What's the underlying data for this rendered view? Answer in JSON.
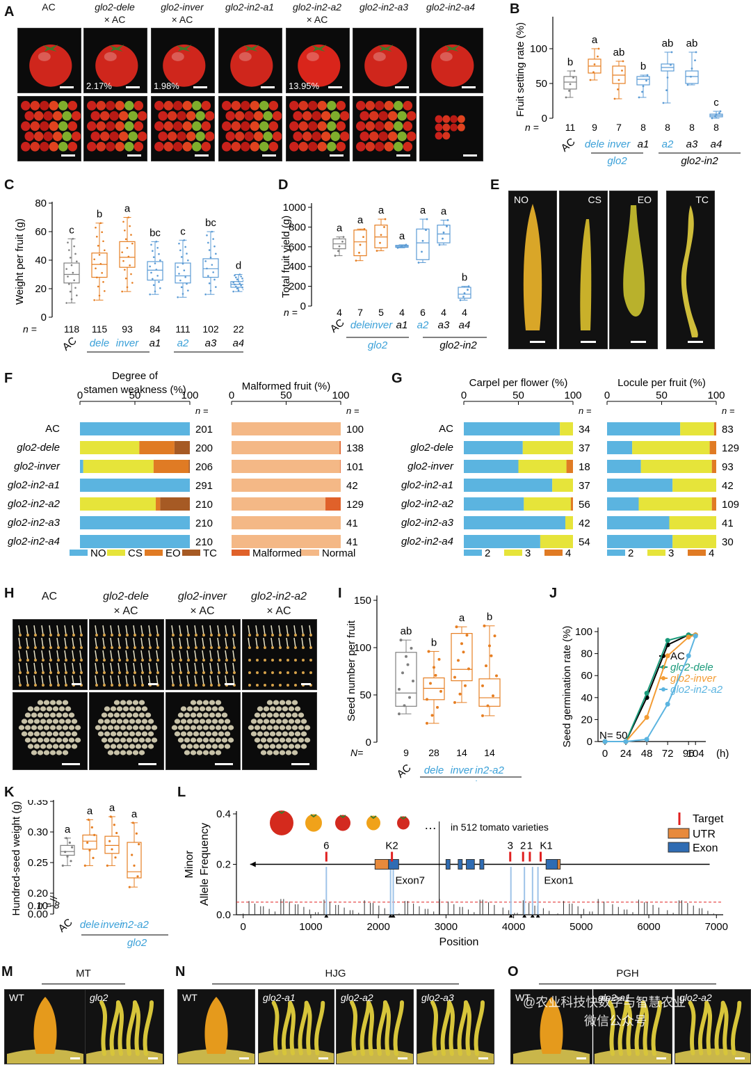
{
  "panelA": {
    "letter": "A",
    "columns": [
      {
        "label1": "AC",
        "label2": "",
        "pct": ""
      },
      {
        "label1": "glo2-dele",
        "label2": "× AC",
        "pct": "2.17%"
      },
      {
        "label1": "glo2-inver",
        "label2": "× AC",
        "pct": "1.98%"
      },
      {
        "label1": "glo2-in2-a1",
        "label2": "",
        "pct": ""
      },
      {
        "label1": "glo2-in2-a2",
        "label2": "× AC",
        "pct": "13.95%"
      },
      {
        "label1": "glo2-in2-a3",
        "label2": "",
        "pct": ""
      },
      {
        "label1": "glo2-in2-a4",
        "label2": "",
        "pct": ""
      }
    ]
  },
  "panelB": {
    "letter": "B",
    "chart_data": {
      "type": "box",
      "ylabel": "Fruit setting rate (%)",
      "yticks": [
        "0",
        "50",
        "100"
      ],
      "ylim": [
        0,
        130
      ],
      "n_label": "n =",
      "groups": [
        {
          "x": "AC",
          "n": "11",
          "sig": "b",
          "color": "#7f7f7f",
          "q1": 42,
          "med": 52,
          "q3": 60,
          "min": 30,
          "max": 68
        },
        {
          "x": "dele",
          "n": "9",
          "sig": "a",
          "color": "#e67e22",
          "q1": 65,
          "med": 75,
          "q3": 85,
          "min": 55,
          "max": 100
        },
        {
          "x": "inver",
          "n": "7",
          "sig": "ab",
          "color": "#e67e22",
          "q1": 50,
          "med": 62,
          "q3": 75,
          "min": 28,
          "max": 82
        },
        {
          "x": "a1",
          "n": "8",
          "sig": "b",
          "color": "#5b9bd5",
          "q1": 48,
          "med": 56,
          "q3": 60,
          "min": 30,
          "max": 62
        },
        {
          "x": "a2",
          "n": "8",
          "sig": "ab",
          "color": "#5b9bd5",
          "q1": 68,
          "med": 73,
          "q3": 78,
          "min": 22,
          "max": 95
        },
        {
          "x": "a3",
          "n": "8",
          "sig": "ab",
          "color": "#5b9bd5",
          "q1": 50,
          "med": 60,
          "q3": 68,
          "min": 48,
          "max": 95
        },
        {
          "x": "a4",
          "n": "8",
          "sig": "c",
          "color": "#5b9bd5",
          "q1": 2,
          "med": 4,
          "q3": 6,
          "min": 0,
          "max": 10
        }
      ],
      "group_labels": [
        "glo2",
        "glo2-in2"
      ]
    }
  },
  "panelC": {
    "letter": "C",
    "chart_data": {
      "type": "box",
      "ylabel": "Weight per fruit (g)",
      "yticks": [
        "0",
        "20",
        "40",
        "60",
        "80"
      ],
      "ylim": [
        0,
        80
      ],
      "n_label": "n =",
      "groups": [
        {
          "x": "AC",
          "n": "118",
          "sig": "c",
          "color": "#7f7f7f",
          "q1": 24,
          "med": 30,
          "q3": 38,
          "min": 10,
          "max": 55
        },
        {
          "x": "dele",
          "n": "115",
          "sig": "b",
          "color": "#e67e22",
          "q1": 28,
          "med": 37,
          "q3": 45,
          "min": 12,
          "max": 66
        },
        {
          "x": "inver",
          "n": "93",
          "sig": "a",
          "color": "#e67e22",
          "q1": 35,
          "med": 42,
          "q3": 53,
          "min": 18,
          "max": 70
        },
        {
          "x": "a1",
          "n": "84",
          "sig": "bc",
          "color": "#5b9bd5",
          "q1": 26,
          "med": 33,
          "q3": 39,
          "min": 16,
          "max": 53
        },
        {
          "x": "a2",
          "n": "111",
          "sig": "c",
          "color": "#5b9bd5",
          "q1": 24,
          "med": 29,
          "q3": 38,
          "min": 14,
          "max": 54
        },
        {
          "x": "a3",
          "n": "102",
          "sig": "bc",
          "color": "#5b9bd5",
          "q1": 28,
          "med": 34,
          "q3": 41,
          "min": 16,
          "max": 60
        },
        {
          "x": "a4",
          "n": "22",
          "sig": "d",
          "color": "#5b9bd5",
          "q1": 21,
          "med": 23,
          "q3": 25,
          "min": 18,
          "max": 30
        }
      ],
      "group_labels": [
        "glo2",
        "glo2-in2"
      ]
    }
  },
  "panelD": {
    "letter": "D",
    "chart_data": {
      "type": "box",
      "ylabel": "Total fruit yield (g)",
      "yticks": [
        "0",
        "200",
        "400",
        "600",
        "800",
        "1000"
      ],
      "ylim": [
        0,
        1000
      ],
      "n_label": "n =",
      "groups": [
        {
          "x": "AC",
          "n": "4",
          "sig": "a",
          "color": "#7f7f7f",
          "q1": 580,
          "med": 630,
          "q3": 680,
          "min": 510,
          "max": 700
        },
        {
          "x": "dele",
          "n": "7",
          "sig": "a",
          "color": "#e67e22",
          "q1": 510,
          "med": 650,
          "q3": 770,
          "min": 460,
          "max": 780
        },
        {
          "x": "inver",
          "n": "5",
          "sig": "a",
          "color": "#e67e22",
          "q1": 590,
          "med": 700,
          "q3": 820,
          "min": 560,
          "max": 880
        },
        {
          "x": "a1",
          "n": "4",
          "sig": "a",
          "color": "#5b9bd5",
          "q1": 595,
          "med": 605,
          "q3": 615,
          "min": 590,
          "max": 620
        },
        {
          "x": "a2",
          "n": "6",
          "sig": "a",
          "color": "#5b9bd5",
          "q1": 470,
          "med": 640,
          "q3": 780,
          "min": 440,
          "max": 880
        },
        {
          "x": "a3",
          "n": "4",
          "sig": "a",
          "color": "#5b9bd5",
          "q1": 640,
          "med": 730,
          "q3": 820,
          "min": 620,
          "max": 870
        },
        {
          "x": "a4",
          "n": "4",
          "sig": "b",
          "color": "#5b9bd5",
          "q1": 80,
          "med": 120,
          "q3": 190,
          "min": 60,
          "max": 200
        }
      ],
      "group_labels": [
        "glo2",
        "glo2-in2"
      ]
    }
  },
  "panelE": {
    "letter": "E",
    "labels": [
      "NO",
      "CS",
      "EO",
      "TC"
    ]
  },
  "panelF": {
    "letter": "F",
    "rows": [
      "AC",
      "glo2-dele",
      "glo2-inver",
      "glo2-in2-a1",
      "glo2-in2-a2",
      "glo2-in2-a3",
      "glo2-in2-a4"
    ],
    "n_header": "n =",
    "chart_data": [
      {
        "type": "stacked-bar",
        "title": "Degree of stamen weakness (%)",
        "ticks": [
          "0",
          "50",
          "100"
        ],
        "legend": [
          {
            "name": "NO",
            "color": "#5bb4e0"
          },
          {
            "name": "CS",
            "color": "#e6e43a"
          },
          {
            "name": "EO",
            "color": "#e07b24"
          },
          {
            "name": "TC",
            "color": "#a65a24"
          }
        ],
        "values": [
          [
            100,
            0,
            0,
            0
          ],
          [
            0,
            54,
            32,
            14
          ],
          [
            3,
            64,
            32,
            1
          ],
          [
            100,
            0,
            0,
            0
          ],
          [
            0,
            69,
            4,
            27
          ],
          [
            100,
            0,
            0,
            0
          ],
          [
            100,
            0,
            0,
            0
          ]
        ],
        "n": [
          "201",
          "200",
          "206",
          "291",
          "210",
          "210",
          "210"
        ]
      },
      {
        "type": "stacked-bar",
        "title": "Malformed fruit (%)",
        "ticks": [
          "0",
          "50",
          "100"
        ],
        "legend": [
          {
            "name": "Malformed",
            "color": "#e0612a"
          },
          {
            "name": "Normal",
            "color": "#f4b886"
          }
        ],
        "values": [
          [
            0,
            100
          ],
          [
            1,
            99
          ],
          [
            0.5,
            99.5
          ],
          [
            0,
            100
          ],
          [
            14,
            86
          ],
          [
            0,
            100
          ],
          [
            0,
            100
          ]
        ],
        "n": [
          "100",
          "138",
          "101",
          "42",
          "129",
          "41",
          "41"
        ],
        "stack_order": "normal-first"
      }
    ]
  },
  "panelG": {
    "letter": "G",
    "rows": [
      "AC",
      "glo2-dele",
      "glo2-inver",
      "glo2-in2-a1",
      "glo2-in2-a2",
      "glo2-in2-a3",
      "glo2-in2-a4"
    ],
    "n_header": "n =",
    "chart_data": [
      {
        "type": "stacked-bar",
        "title": "Carpel per flower (%)",
        "ticks": [
          "0",
          "50",
          "100"
        ],
        "legend": [
          {
            "name": "2",
            "color": "#5bb4e0"
          },
          {
            "name": "3",
            "color": "#e6e43a"
          },
          {
            "name": "4",
            "color": "#e07b24"
          }
        ],
        "values": [
          [
            88,
            12,
            0
          ],
          [
            54,
            46,
            0
          ],
          [
            50,
            44,
            6
          ],
          [
            81,
            19,
            0
          ],
          [
            55,
            43,
            2
          ],
          [
            93,
            7,
            0
          ],
          [
            70,
            30,
            0
          ]
        ],
        "n": [
          "34",
          "37",
          "18",
          "37",
          "56",
          "42",
          "54"
        ]
      },
      {
        "type": "stacked-bar",
        "title": "Locule  per fruit (%)",
        "ticks": [
          "0",
          "50",
          "100"
        ],
        "legend": [
          {
            "name": "2",
            "color": "#5bb4e0"
          },
          {
            "name": "3",
            "color": "#e6e43a"
          },
          {
            "name": "4",
            "color": "#e07b24"
          }
        ],
        "values": [
          [
            67,
            31,
            2
          ],
          [
            23,
            71,
            6
          ],
          [
            31,
            65,
            4
          ],
          [
            60,
            40,
            0
          ],
          [
            29,
            67,
            4
          ],
          [
            57,
            43,
            0
          ],
          [
            60,
            40,
            0
          ]
        ],
        "n": [
          "83",
          "129",
          "93",
          "42",
          "109",
          "41",
          "30"
        ]
      }
    ]
  },
  "panelH": {
    "letter": "H",
    "columns": [
      {
        "label1": "AC",
        "label2": ""
      },
      {
        "label1": "glo2-dele",
        "label2": "× AC"
      },
      {
        "label1": "glo2-inver",
        "label2": "× AC"
      },
      {
        "label1": "glo2-in2-a2",
        "label2": "× AC"
      }
    ]
  },
  "panelI": {
    "letter": "I",
    "chart_data": {
      "type": "box",
      "ylabel": "Seed number per fruit",
      "yticks": [
        "0",
        "50",
        "100",
        "150"
      ],
      "ylim": [
        0,
        150
      ],
      "n_label": "N=",
      "groups": [
        {
          "x": "AC",
          "n": "9",
          "sig": "ab",
          "color": "#7f7f7f",
          "q1": 38,
          "med": 52,
          "q3": 95,
          "min": 30,
          "max": 108
        },
        {
          "x": "dele",
          "n": "28",
          "sig": "b",
          "color": "#e67e22",
          "q1": 45,
          "med": 57,
          "q3": 68,
          "min": 20,
          "max": 96
        },
        {
          "x": "inver",
          "n": "14",
          "sig": "a",
          "color": "#e67e22",
          "q1": 65,
          "med": 77,
          "q3": 115,
          "min": 42,
          "max": 122
        },
        {
          "x": "in2-a2",
          "n": "14",
          "sig": "b",
          "color": "#e67e22",
          "q1": 38,
          "med": 47,
          "q3": 67,
          "min": 28,
          "max": 123
        }
      ],
      "group_labels": [
        "glo2"
      ]
    }
  },
  "panelJ": {
    "letter": "J",
    "chart_data": {
      "type": "line",
      "ylabel": "Seed germination rate (%)",
      "xlabel": "(h)",
      "x": [
        0,
        24,
        48,
        72,
        96,
        104
      ],
      "xticks": [
        "0",
        "24",
        "48",
        "72",
        "96",
        "104"
      ],
      "yticks": [
        "0",
        "20",
        "40",
        "60",
        "80",
        "100"
      ],
      "ylim": [
        0,
        100
      ],
      "n_note": "N= 50",
      "series": [
        {
          "name": "AC",
          "color": "#000000",
          "values": [
            0,
            0,
            40,
            88,
            97,
            97
          ]
        },
        {
          "name": "glo2-dele",
          "color": "#1a9a7a",
          "values": [
            0,
            0,
            44,
            92,
            97,
            97
          ]
        },
        {
          "name": "glo2-inver",
          "color": "#f39c34",
          "values": [
            0,
            0,
            22,
            78,
            95,
            97
          ]
        },
        {
          "name": "glo2-in2-a2",
          "color": "#5bb4e0",
          "values": [
            0,
            0,
            2,
            34,
            78,
            96
          ]
        }
      ]
    }
  },
  "panelK": {
    "letter": "K",
    "chart_data": {
      "type": "box",
      "ylabel": "Hundred-seed weight (g)",
      "yticks": [
        "0.00",
        "0.10",
        "0.20",
        "0.25",
        "0.30",
        "0.35"
      ],
      "n_label": "n = 8",
      "groups": [
        {
          "x": "AC",
          "sig": "a",
          "color": "#7f7f7f",
          "q1": 0.262,
          "med": 0.268,
          "q3": 0.278,
          "min": 0.245,
          "max": 0.29
        },
        {
          "x": "dele",
          "sig": "a",
          "color": "#e67e22",
          "q1": 0.272,
          "med": 0.285,
          "q3": 0.295,
          "min": 0.245,
          "max": 0.32
        },
        {
          "x": "inver",
          "sig": "a",
          "color": "#e67e22",
          "q1": 0.265,
          "med": 0.278,
          "q3": 0.293,
          "min": 0.245,
          "max": 0.325
        },
        {
          "x": "in2-a2",
          "sig": "a",
          "color": "#e67e22",
          "q1": 0.225,
          "med": 0.235,
          "q3": 0.283,
          "min": 0.21,
          "max": 0.315
        }
      ],
      "group_labels": [
        "glo2"
      ]
    }
  },
  "panelL": {
    "letter": "L",
    "chart_data": {
      "type": "bar",
      "ylabel": "Minor Allele Frequency",
      "xlabel": "Position",
      "xticks": [
        "0",
        "1000",
        "2000",
        "3000",
        "4000",
        "5000",
        "6000",
        "7000"
      ],
      "yticks": [
        "0.0",
        "0.2",
        "0.4"
      ],
      "xlim": [
        -100,
        7100
      ],
      "ylim": [
        0,
        0.4
      ],
      "threshold": 0.05
    },
    "varieties_text": "in 512 tomato varieties",
    "ellipsis": "…",
    "legend": [
      {
        "name": "Target",
        "color": "#e02020"
      },
      {
        "name": "UTR",
        "color": "#e88a3c"
      },
      {
        "name": "Exon",
        "color": "#2f6cb3"
      }
    ],
    "targets": [
      "6",
      "K2",
      "3",
      "2",
      "1",
      "K1"
    ],
    "exon_labels": [
      "Exon7",
      "Exon1"
    ]
  },
  "panelM": {
    "letter": "M",
    "group": "MT",
    "labels": [
      "WT",
      "glo2"
    ]
  },
  "panelN": {
    "letter": "N",
    "group": "HJG",
    "labels": [
      "WT",
      "glo2-a1",
      "glo2-a2",
      "glo2-a3"
    ]
  },
  "panelO": {
    "letter": "O",
    "group": "PGH",
    "labels": [
      "WT",
      "glo2-a1",
      "glo2-a2"
    ]
  },
  "watermark": {
    "line1": "@农业科技快数字与智慧农业",
    "line2": "微信公众号"
  }
}
